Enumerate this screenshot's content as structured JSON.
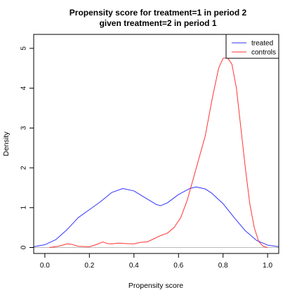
{
  "chart_data": {
    "type": "line",
    "title_line1": "Propensity score for treatment=1 in period 2",
    "title_line2": "given treatment=2 in period 1",
    "xlabel": "Propensity score",
    "ylabel": "Density",
    "xlim": [
      -0.05,
      1.05
    ],
    "ylim": [
      -0.15,
      5.35
    ],
    "xticks": [
      0.0,
      0.2,
      0.4,
      0.6,
      0.8,
      1.0
    ],
    "xtick_labels": [
      "0.0",
      "0.2",
      "0.4",
      "0.6",
      "0.8",
      "1.0"
    ],
    "yticks": [
      0,
      1,
      2,
      3,
      4,
      5
    ],
    "ytick_labels": [
      "0",
      "1",
      "2",
      "3",
      "4",
      "5"
    ],
    "grid": false,
    "legend_position": "top-right",
    "series": [
      {
        "name": "treated",
        "color": "#3333ff",
        "points": [
          [
            -0.05,
            0.02
          ],
          [
            0.0,
            0.07
          ],
          [
            0.05,
            0.2
          ],
          [
            0.1,
            0.45
          ],
          [
            0.15,
            0.75
          ],
          [
            0.2,
            0.95
          ],
          [
            0.25,
            1.15
          ],
          [
            0.3,
            1.38
          ],
          [
            0.35,
            1.48
          ],
          [
            0.4,
            1.42
          ],
          [
            0.45,
            1.25
          ],
          [
            0.5,
            1.08
          ],
          [
            0.52,
            1.05
          ],
          [
            0.55,
            1.12
          ],
          [
            0.6,
            1.33
          ],
          [
            0.65,
            1.48
          ],
          [
            0.68,
            1.52
          ],
          [
            0.72,
            1.47
          ],
          [
            0.75,
            1.36
          ],
          [
            0.8,
            1.1
          ],
          [
            0.85,
            0.75
          ],
          [
            0.9,
            0.42
          ],
          [
            0.95,
            0.18
          ],
          [
            1.0,
            0.06
          ],
          [
            1.05,
            0.02
          ]
        ]
      },
      {
        "name": "controls",
        "color": "#ff3333",
        "points": [
          [
            0.02,
            0.0
          ],
          [
            0.06,
            0.03
          ],
          [
            0.1,
            0.09
          ],
          [
            0.12,
            0.08
          ],
          [
            0.15,
            0.03
          ],
          [
            0.2,
            0.02
          ],
          [
            0.23,
            0.07
          ],
          [
            0.26,
            0.14
          ],
          [
            0.28,
            0.1
          ],
          [
            0.3,
            0.09
          ],
          [
            0.33,
            0.11
          ],
          [
            0.36,
            0.1
          ],
          [
            0.4,
            0.09
          ],
          [
            0.43,
            0.13
          ],
          [
            0.46,
            0.14
          ],
          [
            0.49,
            0.22
          ],
          [
            0.52,
            0.3
          ],
          [
            0.55,
            0.36
          ],
          [
            0.58,
            0.5
          ],
          [
            0.61,
            0.75
          ],
          [
            0.64,
            1.2
          ],
          [
            0.68,
            2.0
          ],
          [
            0.72,
            2.8
          ],
          [
            0.75,
            3.7
          ],
          [
            0.78,
            4.5
          ],
          [
            0.8,
            4.75
          ],
          [
            0.82,
            4.76
          ],
          [
            0.84,
            4.6
          ],
          [
            0.86,
            4.0
          ],
          [
            0.88,
            3.0
          ],
          [
            0.9,
            2.0
          ],
          [
            0.92,
            1.1
          ],
          [
            0.94,
            0.5
          ],
          [
            0.96,
            0.15
          ],
          [
            0.98,
            0.03
          ],
          [
            1.0,
            0.0
          ]
        ]
      }
    ],
    "baseline": 0
  }
}
